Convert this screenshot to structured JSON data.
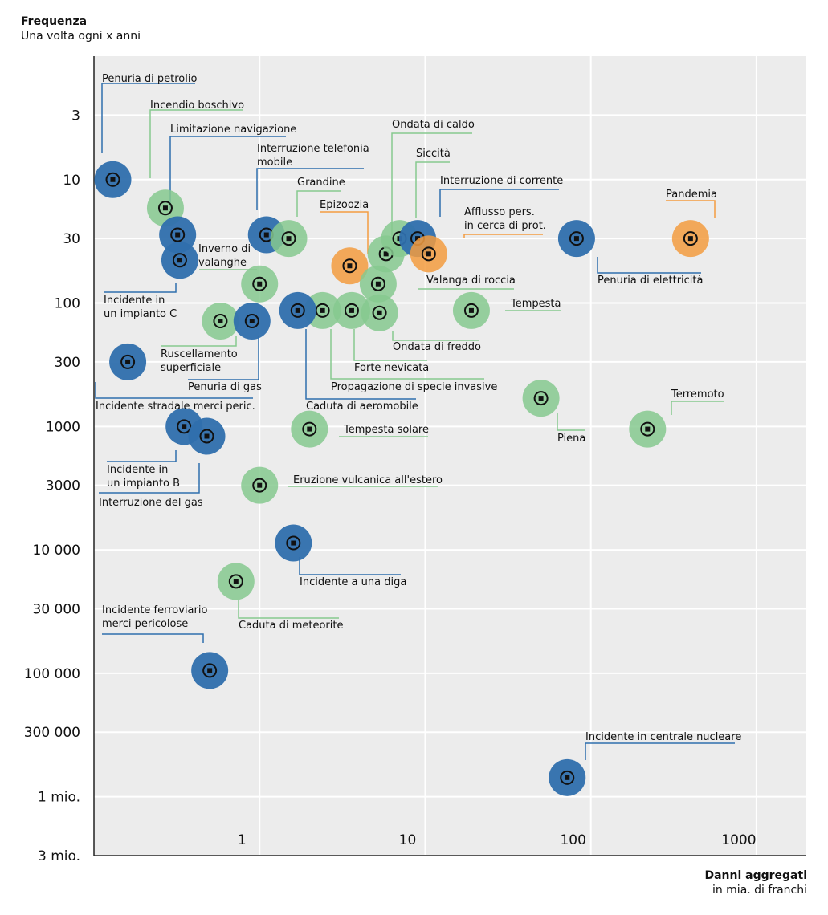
{
  "chart_data": {
    "type": "scatter",
    "ylabel": "Frequenza",
    "ysublabel": "Una volta ogni x anni",
    "xlabel": "Danni aggregati",
    "xsublabel": "in mia. di franchi",
    "x_scale": "log",
    "y_scale": "log",
    "xlim": [
      0.1,
      2000
    ],
    "ylim": [
      1,
      3000000
    ],
    "x_ticks": [
      {
        "value": 1,
        "label": "1"
      },
      {
        "value": 10,
        "label": "10"
      },
      {
        "value": 100,
        "label": "100"
      },
      {
        "value": 1000,
        "label": "1000"
      }
    ],
    "y_ticks": [
      {
        "value": 3,
        "label": "3"
      },
      {
        "value": 10,
        "label": "10"
      },
      {
        "value": 30,
        "label": "30"
      },
      {
        "value": 100,
        "label": "100"
      },
      {
        "value": 300,
        "label": "300"
      },
      {
        "value": 1000,
        "label": "1000"
      },
      {
        "value": 3000,
        "label": "3000"
      },
      {
        "value": 10000,
        "label": "10 000"
      },
      {
        "value": 30000,
        "label": "30 000"
      },
      {
        "value": 100000,
        "label": "100 000"
      },
      {
        "value": 300000,
        "label": "300 000"
      },
      {
        "value": 1000000,
        "label": "1 mio."
      },
      {
        "value": 3000000,
        "label": "3 mio."
      }
    ],
    "categories_colors": {
      "tecnologia": "#2f6fad",
      "natura": "#86c98f",
      "societa": "#f39c40"
    },
    "points": [
      {
        "label": "Penuria di petrolio",
        "x": 0.13,
        "y": 10,
        "cat": "tecnologia",
        "icon": "oil-barrel-icon"
      },
      {
        "label": "Incendio boschivo",
        "x": 0.27,
        "y": 17,
        "cat": "natura",
        "icon": "forest-fire-icon"
      },
      {
        "label": "Limitazione navigazione",
        "x": 0.32,
        "y": 28,
        "cat": "tecnologia",
        "icon": "ship-icon"
      },
      {
        "label": "Interruzione telefonia mobile",
        "x": 1.1,
        "y": 28,
        "cat": "tecnologia",
        "icon": "mobile-phone-icon"
      },
      {
        "label": "Grandine",
        "x": 1.5,
        "y": 30,
        "cat": "natura",
        "icon": "hail-cloud-icon"
      },
      {
        "label": "Incidente in un impianto C",
        "x": 0.33,
        "y": 45,
        "cat": "tecnologia",
        "icon": "industrial-plant-icon"
      },
      {
        "label": "Inverno di valanghe",
        "x": 1.0,
        "y": 70,
        "cat": "natura",
        "icon": "avalanche-icon"
      },
      {
        "label": "Epizoozia",
        "x": 3.5,
        "y": 50,
        "cat": "societa",
        "icon": "pig-icon"
      },
      {
        "label": "Ondata di caldo",
        "x": 5.8,
        "y": 40,
        "cat": "natura",
        "icon": "thermometer-sun-icon"
      },
      {
        "label": "Siccità",
        "x": 7.0,
        "y": 30,
        "cat": "natura",
        "icon": "dry-tree-icon"
      },
      {
        "label": "Interruzione di corrente",
        "x": 9.0,
        "y": 30,
        "cat": "tecnologia",
        "icon": "power-plug-icon"
      },
      {
        "label": "Afflusso pers. in cerca di prot.",
        "x": 10.5,
        "y": 40,
        "cat": "societa",
        "icon": "people-icon"
      },
      {
        "label": "Penuria di elettricità",
        "x": 82,
        "y": 30,
        "cat": "tecnologia",
        "icon": "battery-icon"
      },
      {
        "label": "Pandemia",
        "x": 400,
        "y": 30,
        "cat": "societa",
        "icon": "virus-icon"
      },
      {
        "label": "Valanga di roccia",
        "x": 5.2,
        "y": 70,
        "cat": "natura",
        "icon": "rockfall-icon"
      },
      {
        "label": "Ondata di freddo",
        "x": 5.3,
        "y": 120,
        "cat": "natura",
        "icon": "thermometer-snow-icon"
      },
      {
        "label": "Forte nevicata",
        "x": 3.6,
        "y": 115,
        "cat": "natura",
        "icon": "snow-cloud-icon"
      },
      {
        "label": "Propagazione di specie invasive",
        "x": 2.4,
        "y": 115,
        "cat": "natura",
        "icon": "invasive-species-icon"
      },
      {
        "label": "Caduta di aeromobile",
        "x": 1.7,
        "y": 115,
        "cat": "tecnologia",
        "icon": "airplane-icon"
      },
      {
        "label": "Tempesta",
        "x": 19,
        "y": 115,
        "cat": "natura",
        "icon": "storm-icon"
      },
      {
        "label": "Ruscellamento superficiale",
        "x": 0.58,
        "y": 140,
        "cat": "natura",
        "icon": "flood-house-icon"
      },
      {
        "label": "Penuria di gas",
        "x": 0.9,
        "y": 140,
        "cat": "tecnologia",
        "icon": "gas-bottle-icon"
      },
      {
        "label": "Incidente stradale merci peric.",
        "x": 0.16,
        "y": 300,
        "cat": "tecnologia",
        "icon": "road-accident-icon"
      },
      {
        "label": "Piena",
        "x": 50,
        "y": 590,
        "cat": "natura",
        "icon": "house-water-icon"
      },
      {
        "label": "Terremoto",
        "x": 220,
        "y": 1050,
        "cat": "natura",
        "icon": "earthquake-icon"
      },
      {
        "label": "Tempesta solare",
        "x": 2.0,
        "y": 1050,
        "cat": "natura",
        "icon": "sun-icon"
      },
      {
        "label": "Incidente in un impianto B",
        "x": 0.35,
        "y": 1000,
        "cat": "tecnologia",
        "icon": "industrial-plant-icon"
      },
      {
        "label": "Interruzione del gas",
        "x": 0.48,
        "y": 1200,
        "cat": "tecnologia",
        "icon": "gas-pipe-icon"
      },
      {
        "label": "Eruzione vulcanica all'estero",
        "x": 1.0,
        "y": 3000,
        "cat": "natura",
        "icon": "volcano-icon"
      },
      {
        "label": "Incidente a una diga",
        "x": 1.6,
        "y": 8800,
        "cat": "tecnologia",
        "icon": "dam-wave-icon"
      },
      {
        "label": "Caduta di meteorite",
        "x": 0.72,
        "y": 18000,
        "cat": "natura",
        "icon": "meteorite-icon"
      },
      {
        "label": "Incidente ferroviario merci pericolose",
        "x": 0.5,
        "y": 95000,
        "cat": "tecnologia",
        "icon": "train-accident-icon"
      },
      {
        "label": "Incidente in centrale nucleare",
        "x": 72,
        "y": 700000,
        "cat": "tecnologia",
        "icon": "nuclear-plant-icon"
      }
    ]
  }
}
